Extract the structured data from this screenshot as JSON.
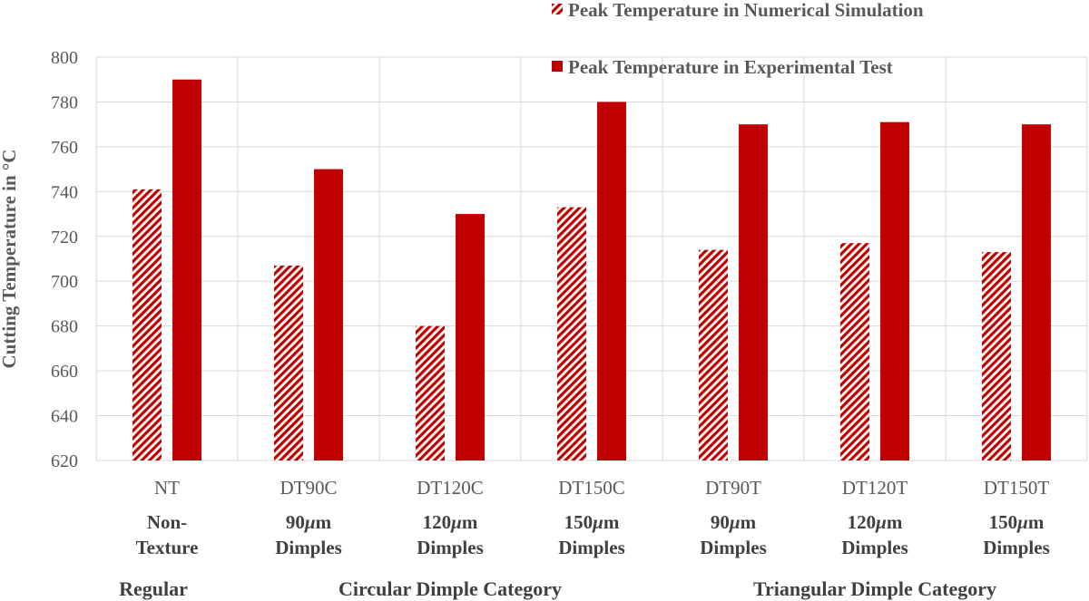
{
  "chart_data": {
    "type": "bar",
    "categories": [
      "NT",
      "DT90C",
      "DT120C",
      "DT150C",
      "DT90T",
      "DT120T",
      "DT150T"
    ],
    "category_sublabels": [
      [
        "Non-",
        "Texture"
      ],
      [
        "90μm",
        "Dimples"
      ],
      [
        "120μm",
        "Dimples"
      ],
      [
        "150μm",
        "Dimples"
      ],
      [
        "90μm",
        "Dimples"
      ],
      [
        "120μm",
        "Dimples"
      ],
      [
        "150μm",
        "Dimples"
      ]
    ],
    "groups": [
      {
        "label": "Regular",
        "categories": [
          0
        ]
      },
      {
        "label": "Circular Dimple Category",
        "categories": [
          1,
          2,
          3
        ]
      },
      {
        "label": "Triangular Dimple Category",
        "categories": [
          4,
          5,
          6
        ]
      }
    ],
    "series": [
      {
        "name": "Peak Temperature in Numerical Simulation",
        "values": [
          741,
          707,
          680,
          733,
          714,
          717,
          713
        ],
        "color": "#c00000",
        "pattern": "diagonal-stripes"
      },
      {
        "name": "Peak Temperature in Experimental Test",
        "values": [
          790,
          750,
          730,
          780,
          770,
          771,
          770
        ],
        "color": "#c00000",
        "pattern": "solid"
      }
    ],
    "ylabel": "Cutting Temperature in °C",
    "xlabel": "",
    "ylim": [
      620,
      800
    ],
    "ytick_step": 20,
    "grid": true,
    "legend_position": "top-right"
  }
}
